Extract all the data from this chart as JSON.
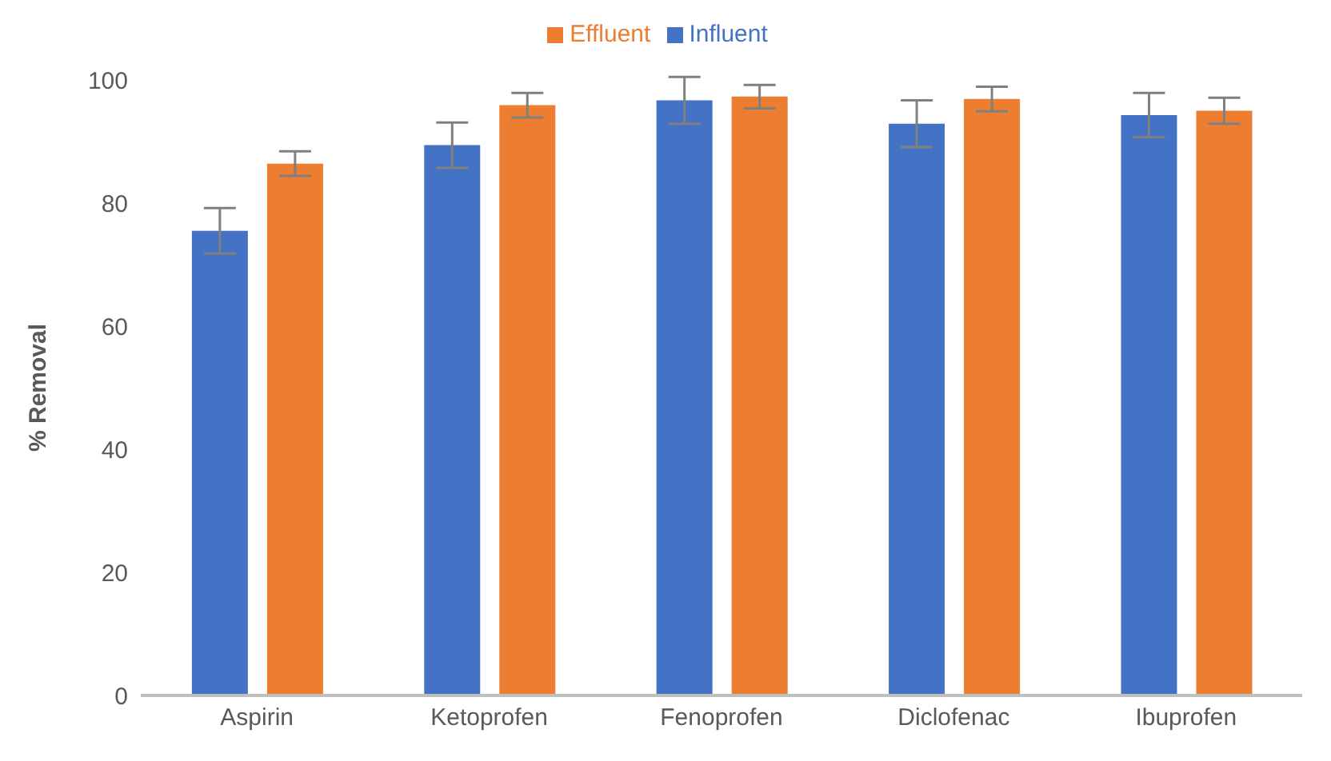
{
  "chart_data": {
    "type": "bar",
    "ylabel": "% Removal",
    "categories": [
      "Aspirin",
      "Ketoprofen",
      "Fenoprofen",
      "Diclofenac",
      "Ibuprofen"
    ],
    "series": [
      {
        "name": "Influent",
        "color": "#4472c4",
        "values": [
          75.5,
          89.4,
          96.7,
          92.9,
          94.3
        ],
        "errors": [
          3.7,
          3.7,
          3.8,
          3.8,
          3.6
        ]
      },
      {
        "name": "Effluent",
        "color": "#ed7d31",
        "values": [
          86.4,
          95.9,
          97.3,
          96.9,
          95.0
        ],
        "errors": [
          2.0,
          2.0,
          1.9,
          2.0,
          2.1
        ]
      }
    ],
    "ylim": [
      0,
      100
    ],
    "yticks": [
      0,
      20,
      40,
      60,
      80,
      100
    ],
    "grid": false,
    "legend": "top"
  }
}
